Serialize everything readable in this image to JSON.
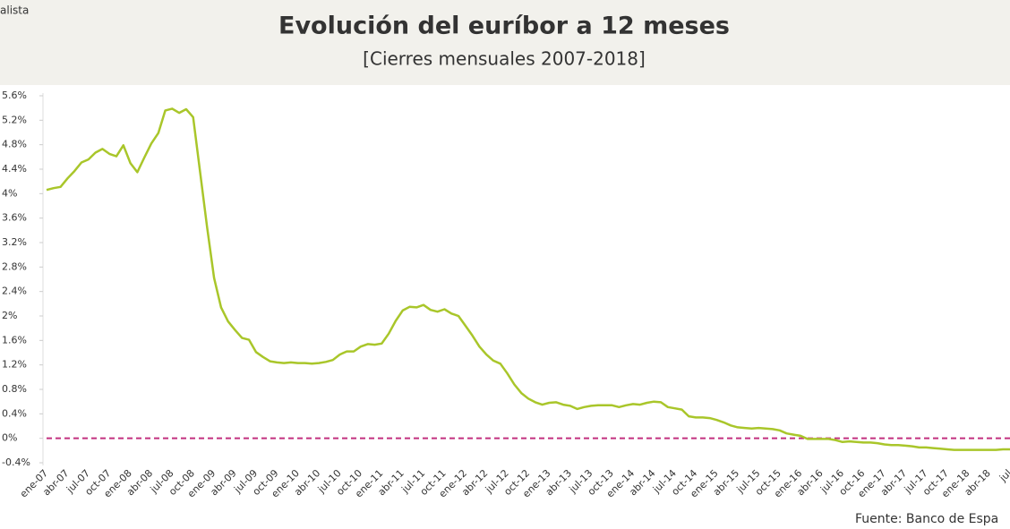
{
  "brand": "alista",
  "chart_data": {
    "type": "line",
    "title": "Evolución del euríbor a 12 meses",
    "subtitle": "[Cierres mensuales 2007-2018]",
    "source": "Fuente: Banco de Espa",
    "categories": [
      "ene-07",
      null,
      null,
      "abr-07",
      null,
      null,
      "jul-07",
      null,
      null,
      "oct-07",
      null,
      null,
      "ene-08",
      null,
      null,
      "abr-08",
      null,
      null,
      "jul-08",
      null,
      null,
      "oct-08",
      null,
      null,
      "ene-09",
      null,
      null,
      "abr-09",
      null,
      null,
      "jul-09",
      null,
      null,
      "oct-09",
      null,
      null,
      "ene-10",
      null,
      null,
      "abr-10",
      null,
      null,
      "jul-10",
      null,
      null,
      "oct-10",
      null,
      null,
      "ene-11",
      null,
      null,
      "abr-11",
      null,
      null,
      "jul-11",
      null,
      null,
      "oct-11",
      null,
      null,
      "ene-12",
      null,
      null,
      "abr-12",
      null,
      null,
      "jul-12",
      null,
      null,
      "oct-12",
      null,
      null,
      "ene-13",
      null,
      null,
      "abr-13",
      null,
      null,
      "jul-13",
      null,
      null,
      "oct-13",
      null,
      null,
      "ene-14",
      null,
      null,
      "abr-14",
      null,
      null,
      "jul-14",
      null,
      null,
      "oct-14",
      null,
      null,
      "ene-15",
      null,
      null,
      "abr-15",
      null,
      null,
      "jul-15",
      null,
      null,
      "oct-15",
      null,
      null,
      "ene-16",
      null,
      null,
      "abr-16",
      null,
      null,
      "jul-16",
      null,
      null,
      "oct-16",
      null,
      null,
      "ene-17",
      null,
      null,
      "abr-17",
      null,
      null,
      "jul-17",
      null,
      null,
      "oct-17",
      null,
      null,
      "ene-18",
      null,
      null,
      "abr-18",
      null,
      null,
      "jul"
    ],
    "series": [
      {
        "color": "#a9c62a",
        "values": [
          4.06,
          4.09,
          4.11,
          4.25,
          4.37,
          4.51,
          4.56,
          4.67,
          4.73,
          4.65,
          4.61,
          4.79,
          4.5,
          4.35,
          4.59,
          4.82,
          4.99,
          5.36,
          5.39,
          5.32,
          5.38,
          5.25,
          4.35,
          3.45,
          2.62,
          2.14,
          1.91,
          1.77,
          1.64,
          1.61,
          1.41,
          1.33,
          1.26,
          1.24,
          1.23,
          1.24,
          1.23,
          1.23,
          1.22,
          1.23,
          1.25,
          1.28,
          1.37,
          1.42,
          1.42,
          1.5,
          1.54,
          1.53,
          1.55,
          1.71,
          1.92,
          2.09,
          2.15,
          2.14,
          2.18,
          2.1,
          2.07,
          2.11,
          2.04,
          2.0,
          1.84,
          1.68,
          1.5,
          1.37,
          1.27,
          1.22,
          1.06,
          0.88,
          0.74,
          0.65,
          0.59,
          0.55,
          0.58,
          0.59,
          0.55,
          0.53,
          0.48,
          0.51,
          0.53,
          0.54,
          0.54,
          0.54,
          0.51,
          0.54,
          0.56,
          0.55,
          0.58,
          0.6,
          0.59,
          0.51,
          0.49,
          0.47,
          0.36,
          0.34,
          0.34,
          0.33,
          0.3,
          0.26,
          0.21,
          0.18,
          0.17,
          0.16,
          0.17,
          0.16,
          0.15,
          0.13,
          0.08,
          0.06,
          0.04,
          -0.01,
          -0.01,
          -0.01,
          -0.01,
          -0.03,
          -0.06,
          -0.05,
          -0.06,
          -0.07,
          -0.07,
          -0.08,
          -0.1,
          -0.11,
          -0.11,
          -0.12,
          -0.13,
          -0.15,
          -0.15,
          -0.16,
          -0.17,
          -0.18,
          -0.19,
          -0.19,
          -0.19,
          -0.19,
          -0.19,
          -0.19,
          -0.19,
          -0.18,
          -0.18
        ]
      }
    ],
    "ylim": [
      -0.4,
      5.6
    ],
    "yticks": [
      {
        "value": -0.4,
        "label": "-0.4%"
      },
      {
        "value": 0,
        "label": "0%"
      },
      {
        "value": 0.4,
        "label": "0.4%"
      },
      {
        "value": 0.8,
        "label": "0.8%"
      },
      {
        "value": 1.2,
        "label": "1.2%"
      },
      {
        "value": 1.6,
        "label": "1.6%"
      },
      {
        "value": 2,
        "label": "2%"
      },
      {
        "value": 2.4,
        "label": "2.4%"
      },
      {
        "value": 2.8,
        "label": "2.8%"
      },
      {
        "value": 3.2,
        "label": "3.2%"
      },
      {
        "value": 3.6,
        "label": "3.6%"
      },
      {
        "value": 4,
        "label": "4%"
      },
      {
        "value": 4.4,
        "label": "4.4%"
      },
      {
        "value": 4.8,
        "label": "4.8%"
      },
      {
        "value": 5.2,
        "label": "5.2%"
      },
      {
        "value": 5.6,
        "label": "5.6%"
      }
    ],
    "zero_line": {
      "value": 0,
      "color": "#c2307f"
    },
    "grid": false
  }
}
